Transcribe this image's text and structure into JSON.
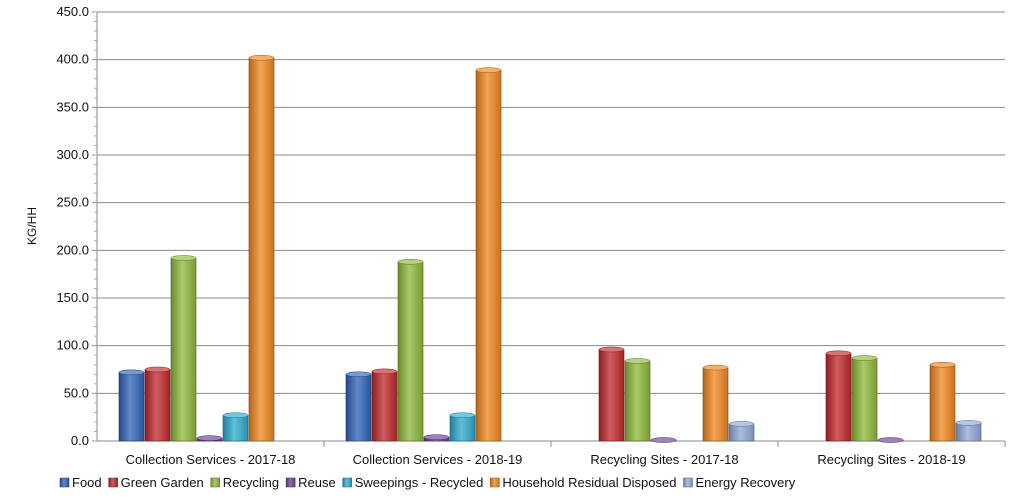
{
  "chart_data": {
    "type": "bar",
    "title": "",
    "xlabel": "",
    "ylabel": "KG/HH",
    "ylim": [
      0,
      450
    ],
    "yticks": [
      "0.0",
      "50.0",
      "100.0",
      "150.0",
      "200.0",
      "250.0",
      "300.0",
      "350.0",
      "400.0",
      "450.0"
    ],
    "grid": true,
    "legend_position": "bottom",
    "categories": [
      "Collection Services - 2017-18",
      "Collection Services - 2018-19",
      "Recycling Sites - 2017-18",
      "Recycling Sites - 2018-19"
    ],
    "series": [
      {
        "name": "Food",
        "color": "#2E63B8",
        "values": [
          72,
          70,
          0,
          0
        ]
      },
      {
        "name": "Green Garden",
        "color": "#C0282B",
        "values": [
          75,
          73,
          96,
          92
        ]
      },
      {
        "name": "Recycling",
        "color": "#8DB83A",
        "values": [
          192,
          188,
          84,
          87
        ]
      },
      {
        "name": "Reuse",
        "color": "#6A3F96",
        "values": [
          3,
          4,
          1,
          1
        ]
      },
      {
        "name": "Sweepings - Recycled",
        "color": "#2CA9CF",
        "values": [
          27,
          27,
          0,
          0
        ]
      },
      {
        "name": "Household Residual Disposed",
        "color": "#F0861E",
        "values": [
          402,
          389,
          77,
          80
        ]
      },
      {
        "name": "Energy Recovery",
        "color": "#8FA8D8",
        "values": [
          0,
          0,
          18,
          19
        ]
      }
    ]
  }
}
